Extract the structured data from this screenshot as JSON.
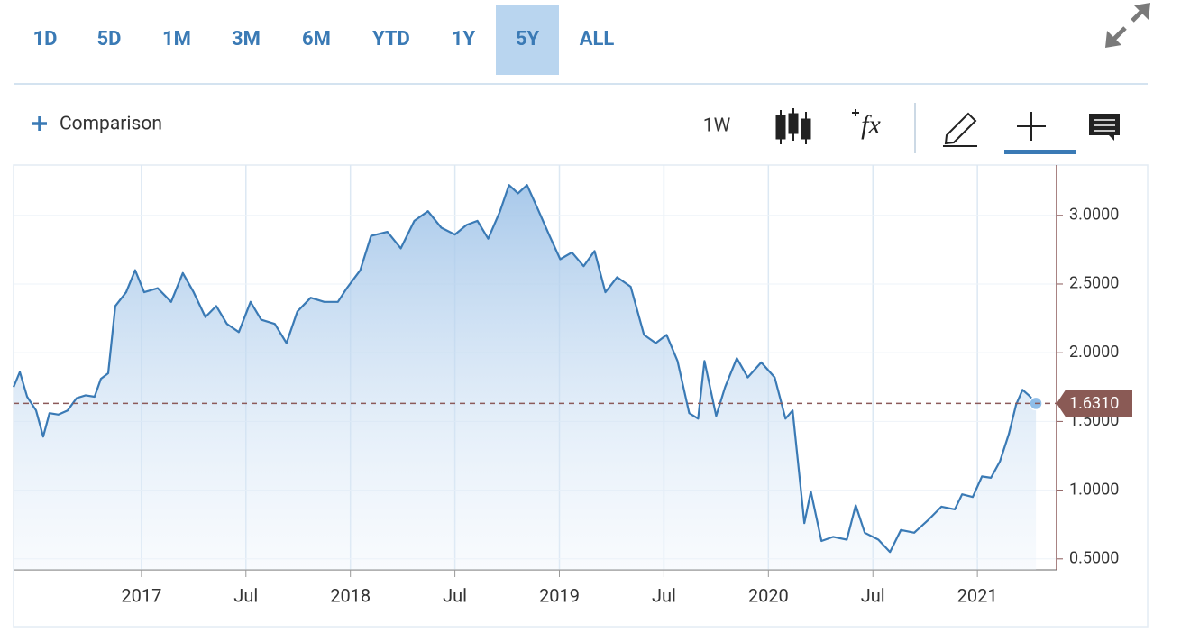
{
  "toolbar": {
    "ranges": [
      "1D",
      "5D",
      "1M",
      "3M",
      "6M",
      "YTD",
      "1Y",
      "5Y",
      "ALL"
    ],
    "active_range": 7,
    "comparison": "Comparison",
    "interval": "1W",
    "studies": "fx"
  },
  "chart_data": {
    "type": "area",
    "x": [
      2016.388,
      2016.418,
      2016.453,
      2016.496,
      2016.53,
      2016.56,
      2016.603,
      2016.647,
      2016.69,
      2016.733,
      2016.776,
      2016.806,
      2016.841,
      2016.875,
      2016.927,
      2016.97,
      2017.013,
      2017.078,
      2017.142,
      2017.198,
      2017.25,
      2017.306,
      2017.358,
      2017.409,
      2017.466,
      2017.522,
      2017.573,
      2017.638,
      2017.694,
      2017.746,
      2017.81,
      2017.875,
      2017.94,
      2017.983,
      2018.047,
      2018.099,
      2018.177,
      2018.241,
      2018.306,
      2018.371,
      2018.435,
      2018.5,
      2018.556,
      2018.608,
      2018.659,
      2018.716,
      2018.759,
      2018.802,
      2018.845,
      2018.901,
      2018.953,
      2019.004,
      2019.06,
      2019.116,
      2019.168,
      2019.22,
      2019.276,
      2019.341,
      2019.405,
      2019.461,
      2019.513,
      2019.565,
      2019.621,
      2019.664,
      2019.694,
      2019.75,
      2019.793,
      2019.849,
      2019.901,
      2019.966,
      2020.03,
      2020.082,
      2020.116,
      2020.172,
      2020.203,
      2020.254,
      2020.31,
      2020.375,
      2020.418,
      2020.461,
      2020.526,
      2020.582,
      2020.634,
      2020.698,
      2020.763,
      2020.828,
      2020.892,
      2020.927,
      2020.978,
      2021.022,
      2021.065,
      2021.108,
      2021.151,
      2021.185,
      2021.216,
      2021.246,
      2021.28
    ],
    "series": [
      {
        "color": "#3a7ab5",
        "values": [
          1.75,
          1.86,
          1.68,
          1.58,
          1.39,
          1.56,
          1.55,
          1.58,
          1.67,
          1.69,
          1.68,
          1.81,
          1.85,
          2.34,
          2.44,
          2.6,
          2.44,
          2.47,
          2.37,
          2.58,
          2.44,
          2.26,
          2.34,
          2.21,
          2.15,
          2.37,
          2.24,
          2.21,
          2.07,
          2.3,
          2.4,
          2.37,
          2.37,
          2.47,
          2.6,
          2.85,
          2.88,
          2.76,
          2.96,
          3.03,
          2.91,
          2.86,
          2.93,
          2.96,
          2.83,
          3.03,
          3.22,
          3.16,
          3.22,
          3.03,
          2.85,
          2.68,
          2.73,
          2.63,
          2.74,
          2.44,
          2.55,
          2.48,
          2.13,
          2.07,
          2.13,
          1.94,
          1.56,
          1.52,
          1.94,
          1.54,
          1.75,
          1.96,
          1.82,
          1.93,
          1.82,
          1.52,
          1.58,
          0.76,
          0.99,
          0.63,
          0.66,
          0.64,
          0.89,
          0.69,
          0.64,
          0.55,
          0.71,
          0.69,
          0.78,
          0.88,
          0.86,
          0.97,
          0.95,
          1.1,
          1.09,
          1.21,
          1.41,
          1.62,
          1.73,
          1.69,
          1.631
        ]
      }
    ],
    "reference_line": {
      "value": 1.631,
      "label": "1.6310"
    },
    "xlim": [
      2016.388,
      2021.379
    ],
    "xticks": [
      2017,
      {
        "value": 2017.5,
        "label": "Jul"
      },
      2018,
      {
        "value": 2018.5,
        "label": "Jul"
      },
      2019,
      {
        "value": 2019.5,
        "label": "Jul"
      },
      2020,
      {
        "value": 2020.5,
        "label": "Jul"
      },
      2021
    ],
    "ylim": [
      0.42,
      3.32
    ],
    "yticks": [
      {
        "value": 0.5,
        "label": "0.5000"
      },
      {
        "value": 1,
        "label": "1.0000"
      },
      {
        "value": 1.5,
        "label": "1.5000"
      },
      {
        "value": 2,
        "label": "2.0000"
      },
      {
        "value": 2.5,
        "label": "2.5000"
      },
      {
        "value": 3,
        "label": "3.0000"
      }
    ],
    "grid": true
  }
}
